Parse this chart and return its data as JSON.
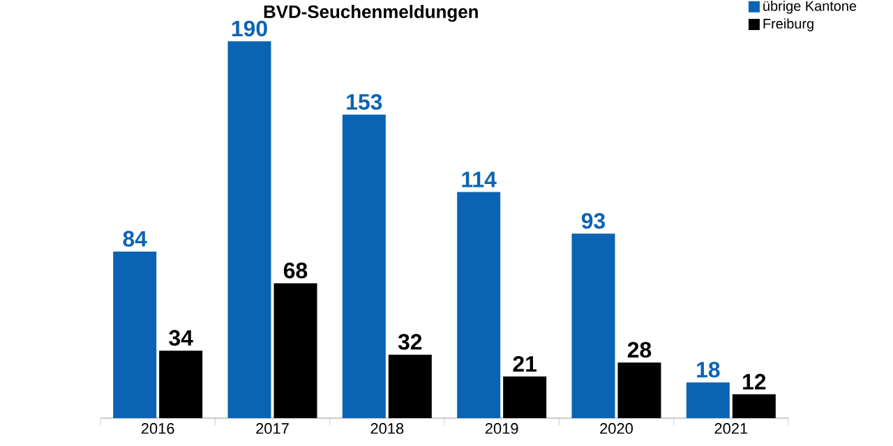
{
  "chart_data": {
    "type": "bar",
    "title": "BVD-Seuchenmeldungen",
    "categories": [
      "2016",
      "2017",
      "2018",
      "2019",
      "2020",
      "2021"
    ],
    "series": [
      {
        "name": "übrige Kantone",
        "color": "#0b64b3",
        "values": [
          84,
          190,
          153,
          114,
          93,
          18
        ]
      },
      {
        "name": "Freiburg",
        "color": "#000000",
        "values": [
          34,
          68,
          32,
          21,
          28,
          12
        ]
      }
    ],
    "data_labels": true,
    "legend": "top right"
  }
}
